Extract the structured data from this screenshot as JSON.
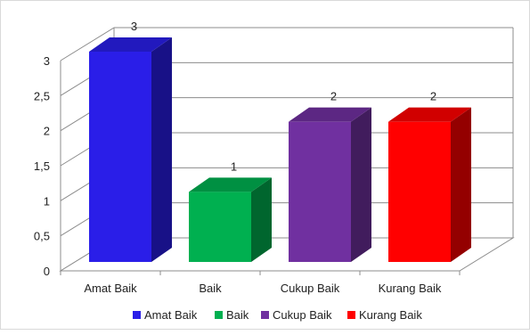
{
  "chart_data": {
    "type": "bar",
    "categories": [
      "Amat Baik",
      "Baik",
      "Cukup Baik",
      "Kurang Baik"
    ],
    "values": [
      3,
      1,
      2,
      2
    ],
    "data_labels": [
      "3",
      "1",
      "2",
      "2"
    ],
    "colors": [
      "#2a1ee8",
      "#00b050",
      "#7030a0",
      "#ff0000"
    ],
    "y_ticks": [
      "0",
      "0,5",
      "1",
      "1,5",
      "2",
      "2,5",
      "3"
    ],
    "ylim": [
      0,
      3
    ],
    "grid": true,
    "legend_position": "bottom",
    "style": "3d-columns"
  }
}
